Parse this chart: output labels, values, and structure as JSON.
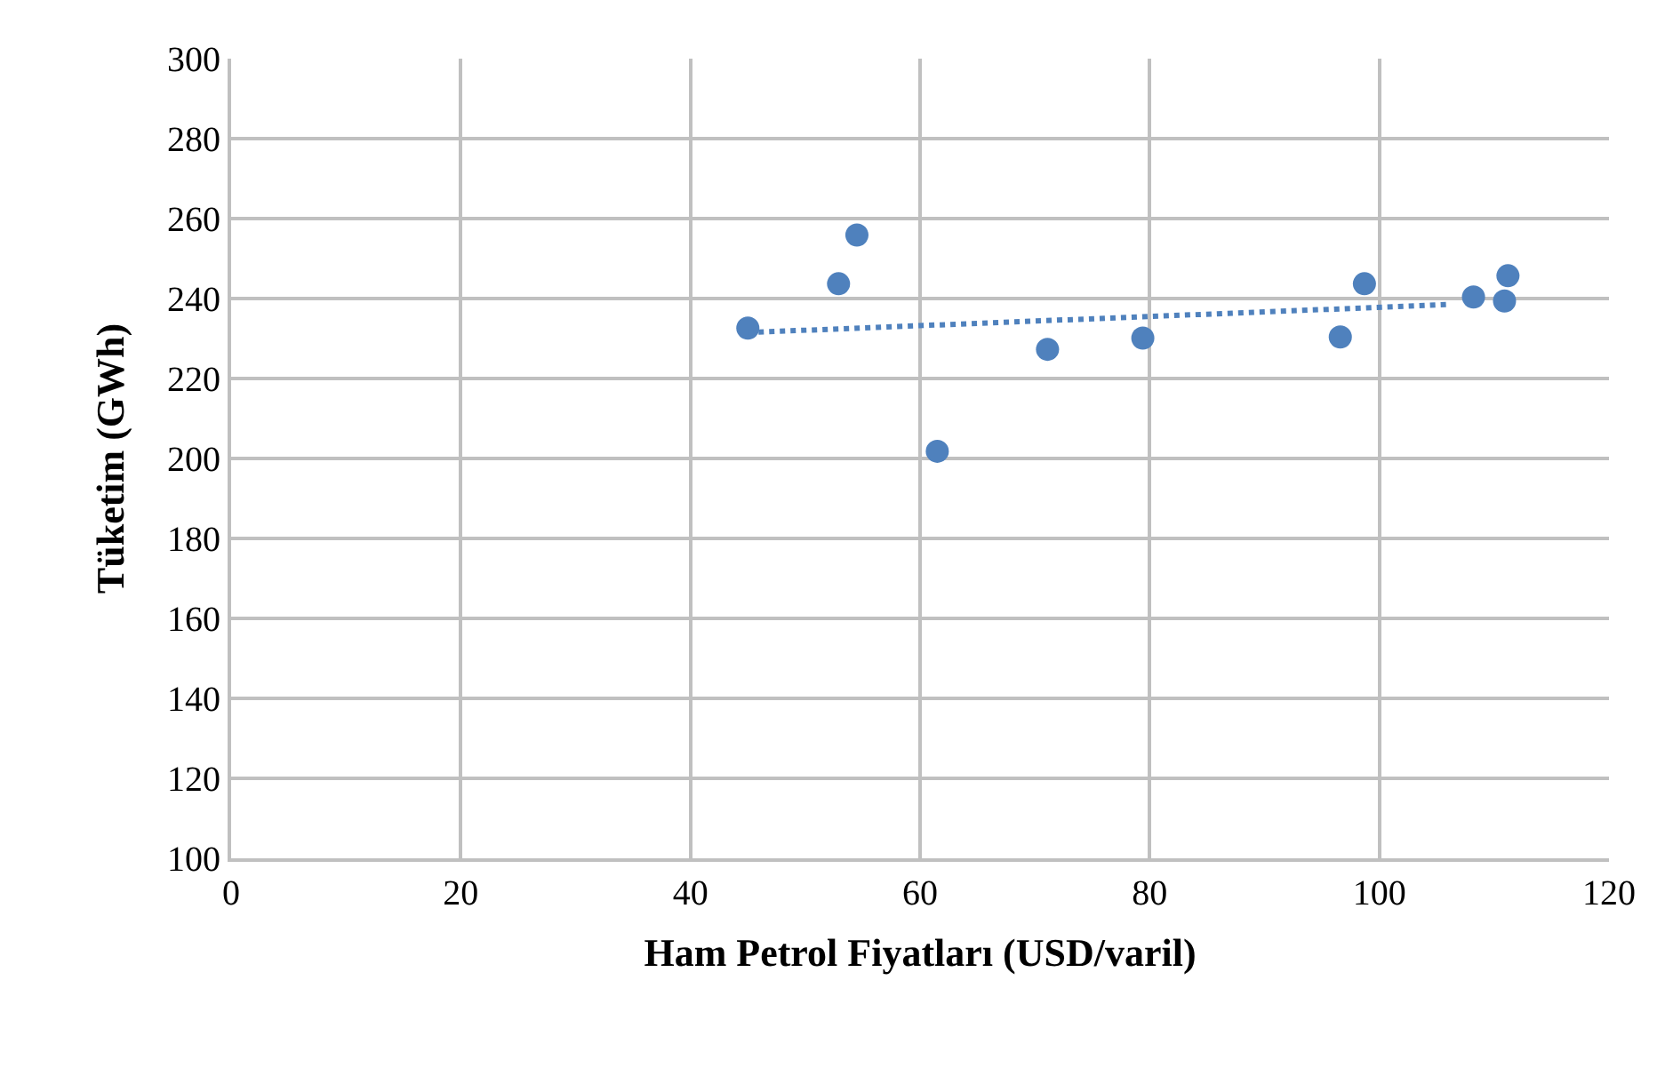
{
  "chart_data": {
    "type": "scatter",
    "xlabel": "Ham Petrol Fiyatları (USD/varil)",
    "ylabel": "Tüketim (GWh)",
    "xlim": [
      0,
      120
    ],
    "xticks": [
      0,
      20,
      40,
      60,
      80,
      100,
      120
    ],
    "ylim": [
      100,
      300
    ],
    "yticks": [
      100,
      120,
      140,
      160,
      180,
      200,
      220,
      240,
      260,
      280,
      300
    ],
    "grid": true,
    "marker": "circle",
    "series": [
      {
        "color": "#4f81bd",
        "x": [
          45.0,
          52.9,
          54.5,
          61.5,
          71.1,
          79.4,
          96.6,
          98.7,
          108.2,
          110.9,
          111.2
        ],
        "values": [
          232.6,
          243.7,
          255.9,
          201.8,
          227.3,
          230.1,
          230.4,
          243.7,
          240.4,
          239.4,
          245.7
        ]
      },
      {
        "type": "line",
        "color": "#4f81bd",
        "line_style": "dotted",
        "marker": "none",
        "x": [
          45.0,
          106.0
        ],
        "values": [
          231.5,
          238.5
        ]
      }
    ]
  }
}
